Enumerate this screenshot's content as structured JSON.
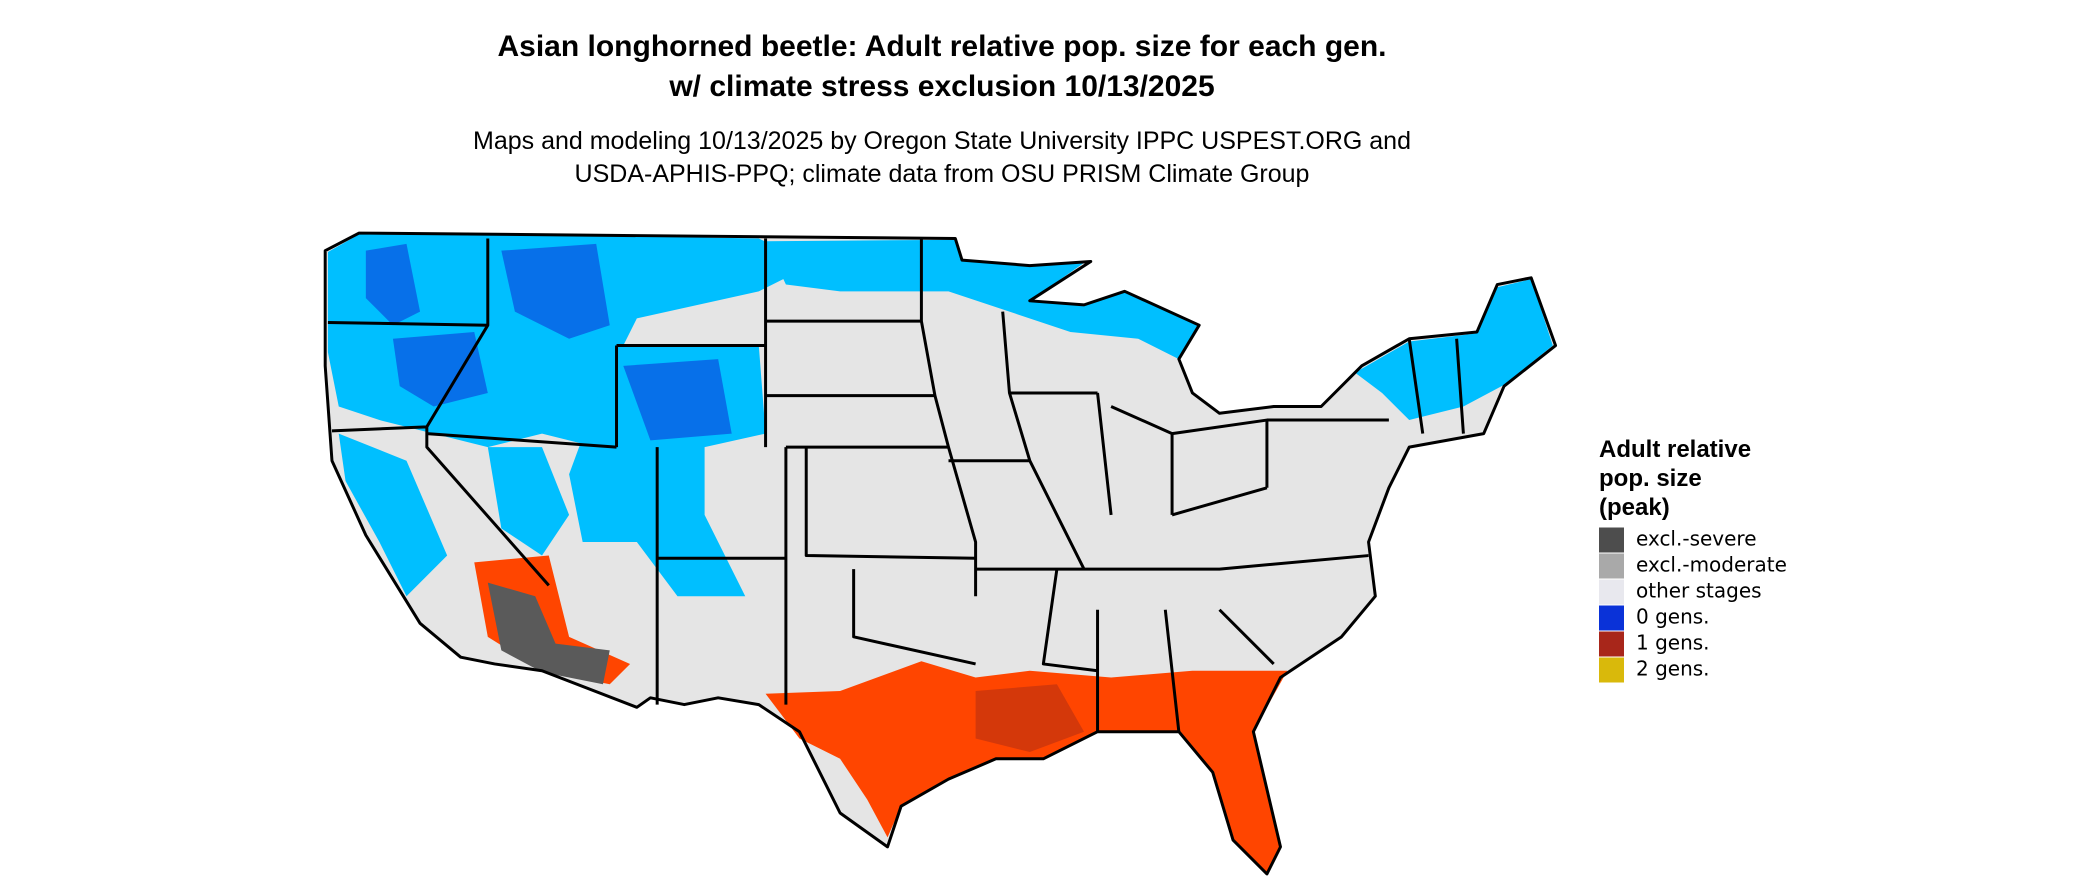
{
  "title": [
    "Asian longhorned beetle: Adult relative pop. size for each gen.",
    "w/ climate stress exclusion 10/13/2025"
  ],
  "subtitle": [
    "Maps and modeling 10/13/2025 by Oregon State University IPPC USPEST.ORG and",
    "USDA-APHIS-PPQ; climate data from OSU PRISM Climate Group"
  ],
  "legend": {
    "title": [
      "Adult relative",
      "pop. size",
      "(peak)"
    ],
    "items": [
      {
        "label": "excl.-severe",
        "color": "#4d4d4d"
      },
      {
        "label": "excl.-moderate",
        "color": "#a9a9a9"
      },
      {
        "label": "other stages",
        "color": "#e8e8ee"
      },
      {
        "label": "0 gens.",
        "color": "#0a32d8"
      },
      {
        "label": "1 gens.",
        "color": "#a8261a"
      },
      {
        "label": "2 gens.",
        "color": "#d9b90b"
      }
    ]
  }
}
